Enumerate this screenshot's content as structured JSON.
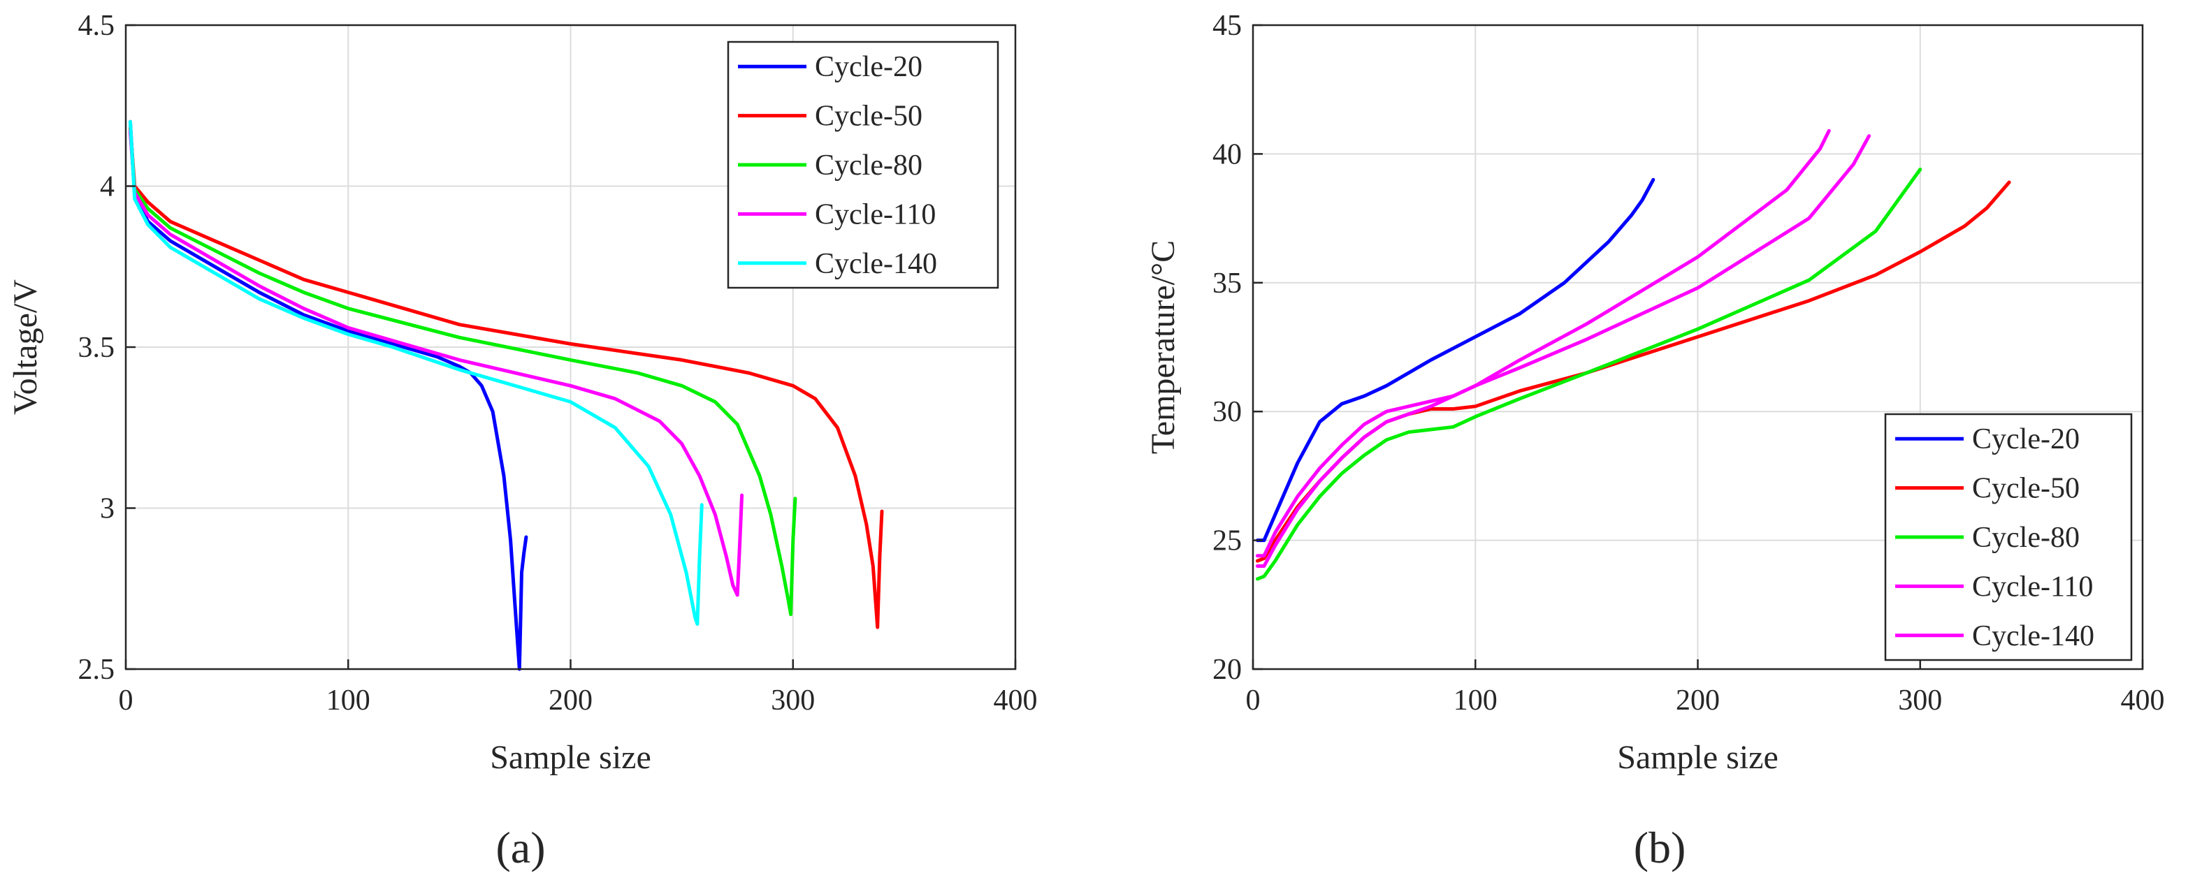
{
  "figure": {
    "panel_labels": [
      "(a)",
      "(b)"
    ]
  },
  "chart_data": [
    {
      "type": "line",
      "panel": "(a)",
      "title": "",
      "xlabel": "Sample size",
      "ylabel": "Voltage/V",
      "xlim": [
        0,
        400
      ],
      "ylim": [
        2.5,
        4.5
      ],
      "xticks": [
        "0",
        "100",
        "200",
        "300",
        "400"
      ],
      "yticks": [
        "2.5",
        "3",
        "3.5",
        "4",
        "4.5"
      ],
      "grid": true,
      "legend_position": "top-right",
      "series": [
        {
          "name": "Cycle-20",
          "color": "#0000ff",
          "x": [
            2,
            4,
            10,
            20,
            40,
            60,
            80,
            100,
            120,
            140,
            150,
            155,
            160,
            165,
            170,
            173,
            175,
            177,
            178,
            179,
            180
          ],
          "y": [
            4.2,
            3.97,
            3.89,
            3.83,
            3.75,
            3.67,
            3.6,
            3.55,
            3.51,
            3.47,
            3.44,
            3.42,
            3.38,
            3.3,
            3.1,
            2.9,
            2.7,
            2.5,
            2.8,
            2.86,
            2.91
          ]
        },
        {
          "name": "Cycle-50",
          "color": "#ff0000",
          "x": [
            2,
            4,
            10,
            20,
            40,
            60,
            80,
            100,
            150,
            200,
            250,
            280,
            300,
            310,
            320,
            328,
            333,
            336,
            338,
            339,
            340
          ],
          "y": [
            4.18,
            4.0,
            3.95,
            3.89,
            3.83,
            3.77,
            3.71,
            3.67,
            3.57,
            3.51,
            3.46,
            3.42,
            3.38,
            3.34,
            3.25,
            3.1,
            2.95,
            2.82,
            2.63,
            2.85,
            2.99
          ]
        },
        {
          "name": "Cycle-80",
          "color": "#00ee00",
          "x": [
            2,
            4,
            10,
            20,
            40,
            60,
            80,
            100,
            150,
            200,
            230,
            250,
            265,
            275,
            285,
            290,
            295,
            298,
            299,
            300,
            301
          ],
          "y": [
            4.17,
            3.99,
            3.93,
            3.87,
            3.8,
            3.73,
            3.67,
            3.62,
            3.53,
            3.46,
            3.42,
            3.38,
            3.33,
            3.26,
            3.1,
            2.98,
            2.82,
            2.71,
            2.67,
            2.9,
            3.03
          ]
        },
        {
          "name": "Cycle-110",
          "color": "#ff00ff",
          "x": [
            2,
            4,
            10,
            20,
            40,
            60,
            80,
            100,
            150,
            200,
            220,
            240,
            250,
            258,
            265,
            270,
            273,
            275,
            276,
            277
          ],
          "y": [
            4.17,
            3.98,
            3.91,
            3.85,
            3.77,
            3.69,
            3.62,
            3.56,
            3.46,
            3.38,
            3.34,
            3.27,
            3.2,
            3.1,
            2.98,
            2.85,
            2.76,
            2.73,
            2.88,
            3.04
          ]
        },
        {
          "name": "Cycle-140",
          "color": "#00ffff",
          "x": [
            2,
            4,
            10,
            20,
            40,
            60,
            80,
            100,
            120,
            150,
            180,
            200,
            220,
            235,
            245,
            252,
            256,
            257,
            258,
            259
          ],
          "y": [
            4.2,
            3.96,
            3.88,
            3.81,
            3.73,
            3.65,
            3.59,
            3.54,
            3.5,
            3.43,
            3.37,
            3.33,
            3.25,
            3.13,
            2.98,
            2.8,
            2.66,
            2.64,
            2.85,
            3.01
          ]
        }
      ]
    },
    {
      "type": "line",
      "panel": "(b)",
      "title": "",
      "xlabel": "Sample size",
      "ylabel": "Temperature/°C",
      "xlim": [
        0,
        400
      ],
      "ylim": [
        20,
        45
      ],
      "xticks": [
        "0",
        "100",
        "200",
        "300",
        "400"
      ],
      "yticks": [
        "20",
        "25",
        "30",
        "35",
        "40",
        "45"
      ],
      "grid": true,
      "legend_position": "bottom-right",
      "series": [
        {
          "name": "Cycle-20",
          "color": "#0000ff",
          "x": [
            2,
            5,
            10,
            20,
            30,
            40,
            50,
            60,
            80,
            100,
            120,
            140,
            160,
            170,
            175,
            180
          ],
          "y": [
            25.0,
            25.0,
            26.0,
            28.0,
            29.6,
            30.3,
            30.6,
            31.0,
            32.0,
            32.9,
            33.8,
            35.0,
            36.6,
            37.6,
            38.2,
            39.0
          ]
        },
        {
          "name": "Cycle-50",
          "color": "#ff0000",
          "x": [
            2,
            5,
            10,
            20,
            30,
            40,
            50,
            60,
            70,
            80,
            90,
            100,
            120,
            150,
            200,
            250,
            280,
            300,
            320,
            330,
            340
          ],
          "y": [
            24.2,
            24.3,
            25.0,
            26.3,
            27.3,
            28.2,
            29.0,
            29.6,
            29.9,
            30.1,
            30.1,
            30.2,
            30.8,
            31.5,
            32.9,
            34.3,
            35.3,
            36.2,
            37.2,
            37.9,
            38.9
          ]
        },
        {
          "name": "Cycle-80",
          "color": "#00ee00",
          "x": [
            2,
            5,
            10,
            20,
            30,
            40,
            50,
            60,
            70,
            80,
            90,
            100,
            120,
            150,
            200,
            250,
            280,
            300
          ],
          "y": [
            23.5,
            23.6,
            24.2,
            25.6,
            26.7,
            27.6,
            28.3,
            28.9,
            29.2,
            29.3,
            29.4,
            29.8,
            30.5,
            31.5,
            33.2,
            35.1,
            37.0,
            39.4
          ]
        },
        {
          "name": "Cycle-110",
          "color": "#ff00ff",
          "x": [
            2,
            5,
            10,
            20,
            30,
            40,
            50,
            60,
            70,
            80,
            90,
            100,
            120,
            150,
            200,
            250,
            270,
            277
          ],
          "y": [
            24.0,
            24.0,
            24.8,
            26.2,
            27.3,
            28.2,
            29.0,
            29.6,
            29.9,
            30.2,
            30.6,
            31.0,
            31.7,
            32.8,
            34.8,
            37.5,
            39.6,
            40.7
          ]
        },
        {
          "name": "Cycle-140",
          "color": "#ff00ff",
          "x": [
            2,
            5,
            10,
            20,
            30,
            40,
            50,
            60,
            70,
            80,
            90,
            100,
            120,
            150,
            200,
            240,
            255,
            259
          ],
          "y": [
            24.4,
            24.4,
            25.3,
            26.7,
            27.8,
            28.7,
            29.5,
            30.0,
            30.2,
            30.4,
            30.6,
            31.0,
            32.0,
            33.4,
            36.0,
            38.6,
            40.2,
            40.9
          ]
        }
      ]
    }
  ]
}
